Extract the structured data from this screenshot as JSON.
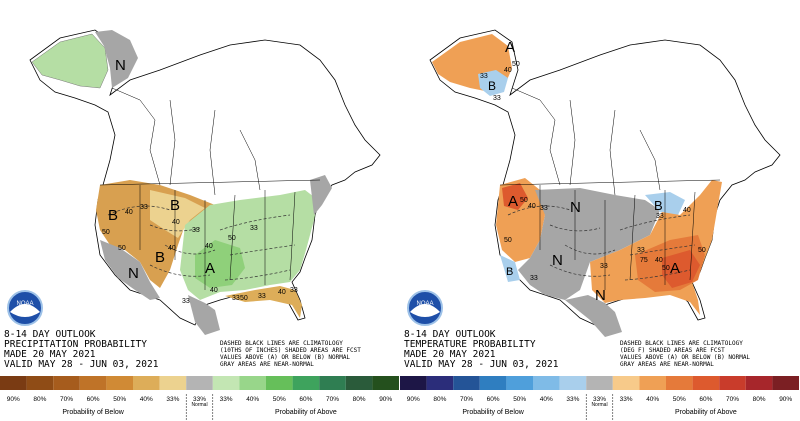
{
  "precipitation": {
    "title_lines": [
      "8-14 DAY OUTLOOK",
      "PRECIPITATION PROBABILITY",
      "MADE  20 MAY 2021",
      "VALID  MAY 28 - JUN 03, 2021"
    ],
    "note_lines": [
      "DASHED BLACK LINES ARE CLIMATOLOGY",
      "(10THS OF INCHES) SHADED AREAS ARE FCST",
      "VALUES ABOVE (A) OR BELOW (B) NORMAL",
      "GRAY AREAS ARE NEAR-NORMAL"
    ],
    "region_labels": [
      "N",
      "B",
      "B",
      "B",
      "A",
      "N"
    ],
    "contour_labels": [
      "50",
      "40",
      "33",
      "33",
      "40",
      "33",
      "33",
      "40",
      "50",
      "33",
      "40",
      "33",
      "50",
      "40",
      "33",
      "50",
      "40"
    ],
    "legend": {
      "below_labels": [
        "90%",
        "80%",
        "70%",
        "60%",
        "50%",
        "40%",
        "33%"
      ],
      "normal_label": "33%",
      "above_labels": [
        "33%",
        "40%",
        "50%",
        "60%",
        "70%",
        "80%",
        "90%"
      ],
      "below_title": "Probability of Below",
      "normal_title": "Normal",
      "above_title": "Probability of Above",
      "colors": [
        "#7a3b13",
        "#8f4c16",
        "#a65c1d",
        "#bf7328",
        "#d08a35",
        "#ddad59",
        "#ecd28f",
        "#b4b4b4",
        "#c3e6b3",
        "#98d68a",
        "#66bf5a",
        "#3ea35d",
        "#2f7e52",
        "#2a5b3a",
        "#24501d"
      ]
    }
  },
  "temperature": {
    "title_lines": [
      "8-14 DAY OUTLOOK",
      "TEMPERATURE PROBABILITY",
      "MADE  20 MAY 2021",
      "VALID  MAY 28 - JUN 03, 2021"
    ],
    "note_lines": [
      "DASHED BLACK LINES ARE CLIMATOLOGY",
      "(DEG F) SHADED AREAS ARE FCST",
      "VALUES ABOVE (A) OR BELOW (B) NORMAL",
      "GRAY AREAS ARE NEAR-NORMAL"
    ],
    "region_labels": [
      "A",
      "B",
      "B",
      "A",
      "N",
      "B",
      "A",
      "N",
      "N"
    ],
    "contour_labels": [
      "40",
      "33",
      "50",
      "33",
      "50",
      "40",
      "33",
      "33",
      "40",
      "50",
      "33",
      "33",
      "50",
      "40",
      "75",
      "50",
      "33"
    ],
    "legend": {
      "below_labels": [
        "90%",
        "80%",
        "70%",
        "60%",
        "50%",
        "40%",
        "33%"
      ],
      "normal_label": "33%",
      "above_labels": [
        "33%",
        "40%",
        "50%",
        "60%",
        "70%",
        "80%",
        "90%"
      ],
      "below_title": "Probability of Below",
      "normal_title": "Normal",
      "above_title": "Probability of Above",
      "colors": [
        "#1d1646",
        "#2b2d7a",
        "#245497",
        "#2f7ec0",
        "#4f9fdb",
        "#7fbbe7",
        "#a9cfec",
        "#b4b4b4",
        "#f7ca8a",
        "#efa055",
        "#e57a3a",
        "#dd5a2e",
        "#c93c2b",
        "#a7262b",
        "#7b1f23"
      ]
    }
  },
  "logo": {
    "text": "NOAA"
  },
  "colors": {
    "background": "#ffffff",
    "map_land": "#ffffff",
    "gray_normal": "#a6a6a6"
  }
}
